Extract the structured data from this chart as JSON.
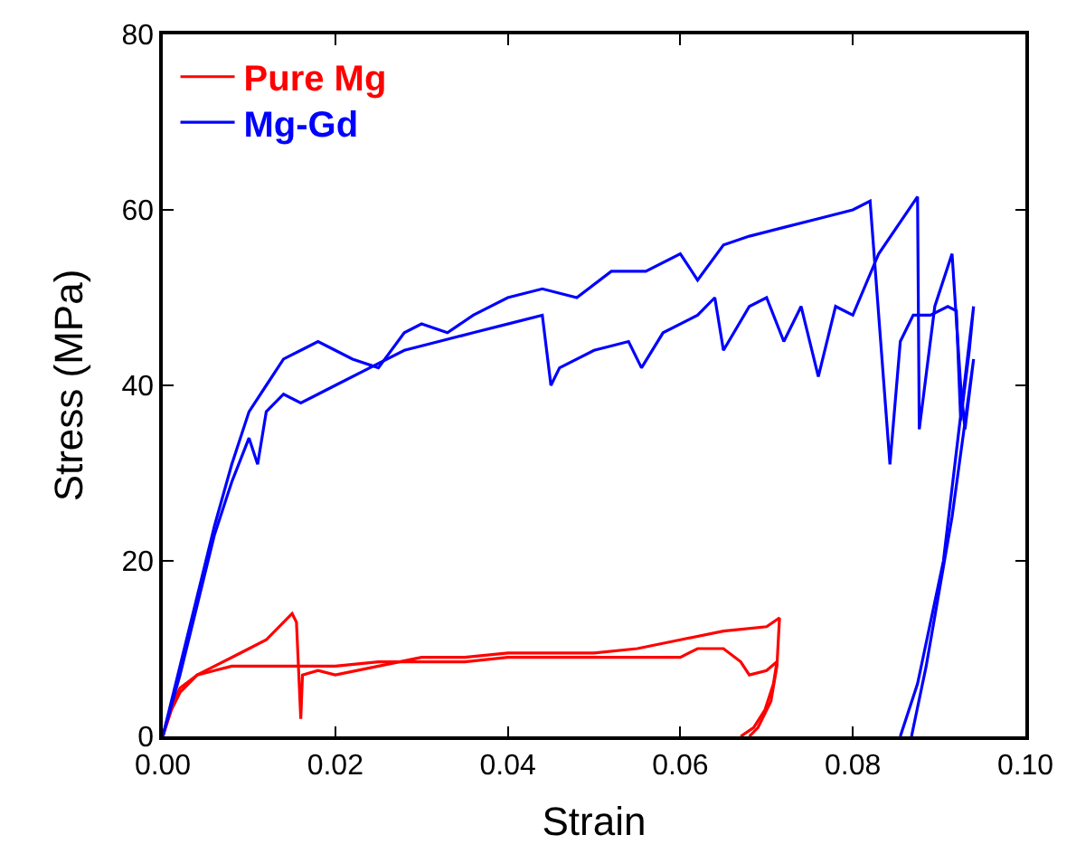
{
  "chart_data": {
    "type": "line",
    "xlabel": "Strain",
    "ylabel": "Stress (MPa)",
    "xlim": [
      0,
      0.1
    ],
    "ylim": [
      0,
      80
    ],
    "xticks": [
      {
        "value": 0,
        "label": "0.00"
      },
      {
        "value": 0.02,
        "label": "0.02"
      },
      {
        "value": 0.04,
        "label": "0.04"
      },
      {
        "value": 0.06,
        "label": "0.06"
      },
      {
        "value": 0.08,
        "label": "0.08"
      },
      {
        "value": 0.1,
        "label": "0.10"
      }
    ],
    "yticks": [
      0,
      20,
      40,
      60,
      80
    ],
    "legend": "top left",
    "marker": "none",
    "line_style": "solid",
    "series": [
      {
        "name": "Pure Mg",
        "color": "#ff0000",
        "x": [
          0,
          0.001,
          0.002,
          0.004,
          0.006,
          0.008,
          0.01,
          0.012,
          0.014,
          0.015,
          0.0155,
          0.016,
          0.0162,
          0.018,
          0.02,
          0.025,
          0.03,
          0.035,
          0.04,
          0.045,
          0.05,
          0.055,
          0.06,
          0.065,
          0.07,
          0.0715,
          0.0712,
          0.0705,
          0.069,
          0.068
        ],
        "values": [
          0,
          3,
          5,
          7,
          8,
          9,
          10,
          11,
          13,
          14,
          13,
          2,
          7,
          7.5,
          7,
          8,
          9,
          9,
          9.5,
          9.5,
          9.5,
          10,
          11,
          12,
          12.5,
          13.5,
          8,
          4,
          1,
          0
        ]
      },
      {
        "color": "#ff0000",
        "x": [
          0,
          0.001,
          0.002,
          0.004,
          0.006,
          0.008,
          0.01,
          0.012,
          0.014,
          0.016,
          0.018,
          0.02,
          0.025,
          0.03,
          0.035,
          0.04,
          0.045,
          0.05,
          0.055,
          0.06,
          0.062,
          0.065,
          0.067,
          0.068,
          0.07,
          0.0712,
          0.0708,
          0.0698,
          0.0685,
          0.067
        ],
        "values": [
          0,
          3.5,
          5.5,
          7,
          7.5,
          8,
          8,
          8,
          8,
          8,
          8,
          8,
          8.5,
          8.5,
          8.5,
          9,
          9,
          9,
          9,
          9,
          10,
          10,
          8.5,
          7,
          7.5,
          8.5,
          6,
          3,
          1,
          0
        ]
      },
      {
        "name": "Mg-Gd",
        "color": "#0000ff",
        "x": [
          0,
          0.002,
          0.004,
          0.006,
          0.008,
          0.01,
          0.012,
          0.014,
          0.016,
          0.018,
          0.02,
          0.022,
          0.025,
          0.028,
          0.03,
          0.033,
          0.036,
          0.04,
          0.044,
          0.048,
          0.052,
          0.056,
          0.06,
          0.062,
          0.065,
          0.068,
          0.072,
          0.076,
          0.08,
          0.082,
          0.0843,
          0.0855,
          0.087,
          0.089,
          0.091,
          0.092,
          0.0925,
          0.0935,
          0.094,
          0.0905,
          0.0875,
          0.0855
        ],
        "values": [
          0,
          8,
          16,
          24,
          31,
          37,
          40,
          43,
          44,
          45,
          44,
          43,
          42,
          46,
          47,
          46,
          48,
          50,
          51,
          50,
          53,
          53,
          55,
          52,
          56,
          57,
          58,
          59,
          60,
          61,
          31,
          45,
          48,
          48,
          49,
          48.5,
          36,
          44,
          49,
          20,
          6,
          0
        ]
      },
      {
        "color": "#0000ff",
        "x": [
          0,
          0.002,
          0.004,
          0.006,
          0.008,
          0.01,
          0.011,
          0.012,
          0.014,
          0.016,
          0.018,
          0.02,
          0.024,
          0.028,
          0.032,
          0.036,
          0.04,
          0.044,
          0.045,
          0.046,
          0.05,
          0.054,
          0.0555,
          0.058,
          0.062,
          0.064,
          0.065,
          0.068,
          0.07,
          0.072,
          0.074,
          0.076,
          0.078,
          0.08,
          0.083,
          0.0875,
          0.0877,
          0.0895,
          0.0915,
          0.0925,
          0.093,
          0.094,
          0.0915,
          0.0885,
          0.0868
        ],
        "values": [
          0,
          7,
          15,
          23,
          29,
          34,
          31,
          37,
          39,
          38,
          39,
          40,
          42,
          44,
          45,
          46,
          47,
          48,
          40,
          42,
          44,
          45,
          42,
          46,
          48,
          50,
          44,
          49,
          50,
          45,
          49,
          41,
          49,
          48,
          55,
          61.5,
          35,
          49,
          55,
          40,
          35,
          43,
          25,
          8,
          0
        ]
      }
    ]
  }
}
